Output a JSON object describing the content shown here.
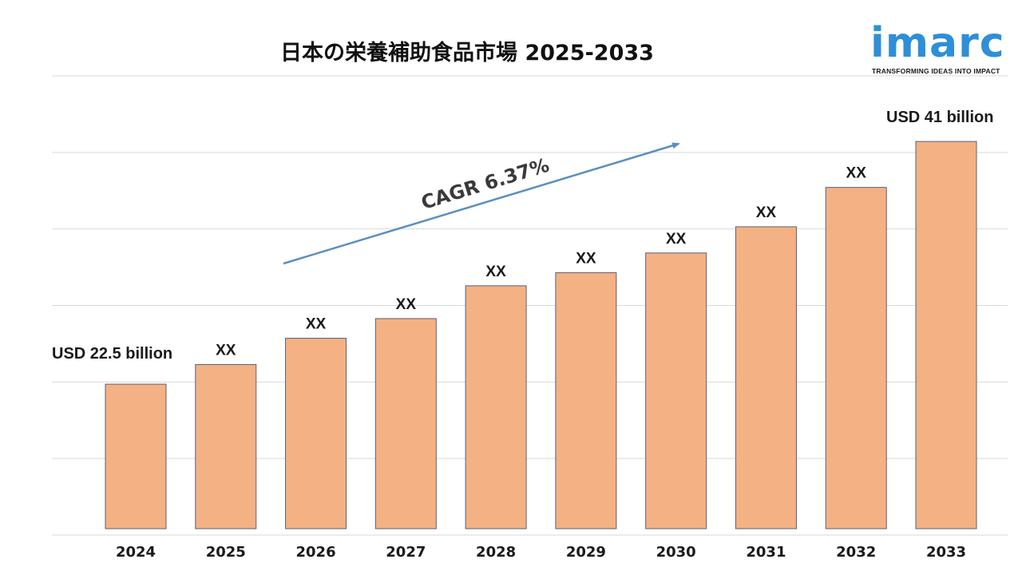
{
  "logo": {
    "word": "imarc",
    "tagline": "TRANSFORMING IDEAS INTO IMPACT"
  },
  "colors": {
    "bar_fill": "#f4b183",
    "bar_stroke": "#5a5f7a",
    "arrow": "#5b8fbf",
    "gridline": "#d9d9d9",
    "logo": "#2e8fd8"
  },
  "chart_data": {
    "type": "bar",
    "title": "日本の栄養補助食品市場 2025-2033",
    "xlabel": "",
    "ylabel": "",
    "categories": [
      "2024",
      "2025",
      "2026",
      "2027",
      "2028",
      "2029",
      "2030",
      "2031",
      "2032",
      "2033"
    ],
    "values": [
      22.5,
      24.0,
      26.0,
      27.5,
      30.0,
      31.0,
      32.5,
      34.5,
      37.5,
      41.0
    ],
    "data_labels": [
      "USD 22.5 billion",
      "XX",
      "XX",
      "XX",
      "XX",
      "XX",
      "XX",
      "XX",
      "XX",
      "USD 41 billion"
    ],
    "ylim": [
      11,
      46
    ],
    "grid": true,
    "annotation": "CAGR 6.37%"
  }
}
